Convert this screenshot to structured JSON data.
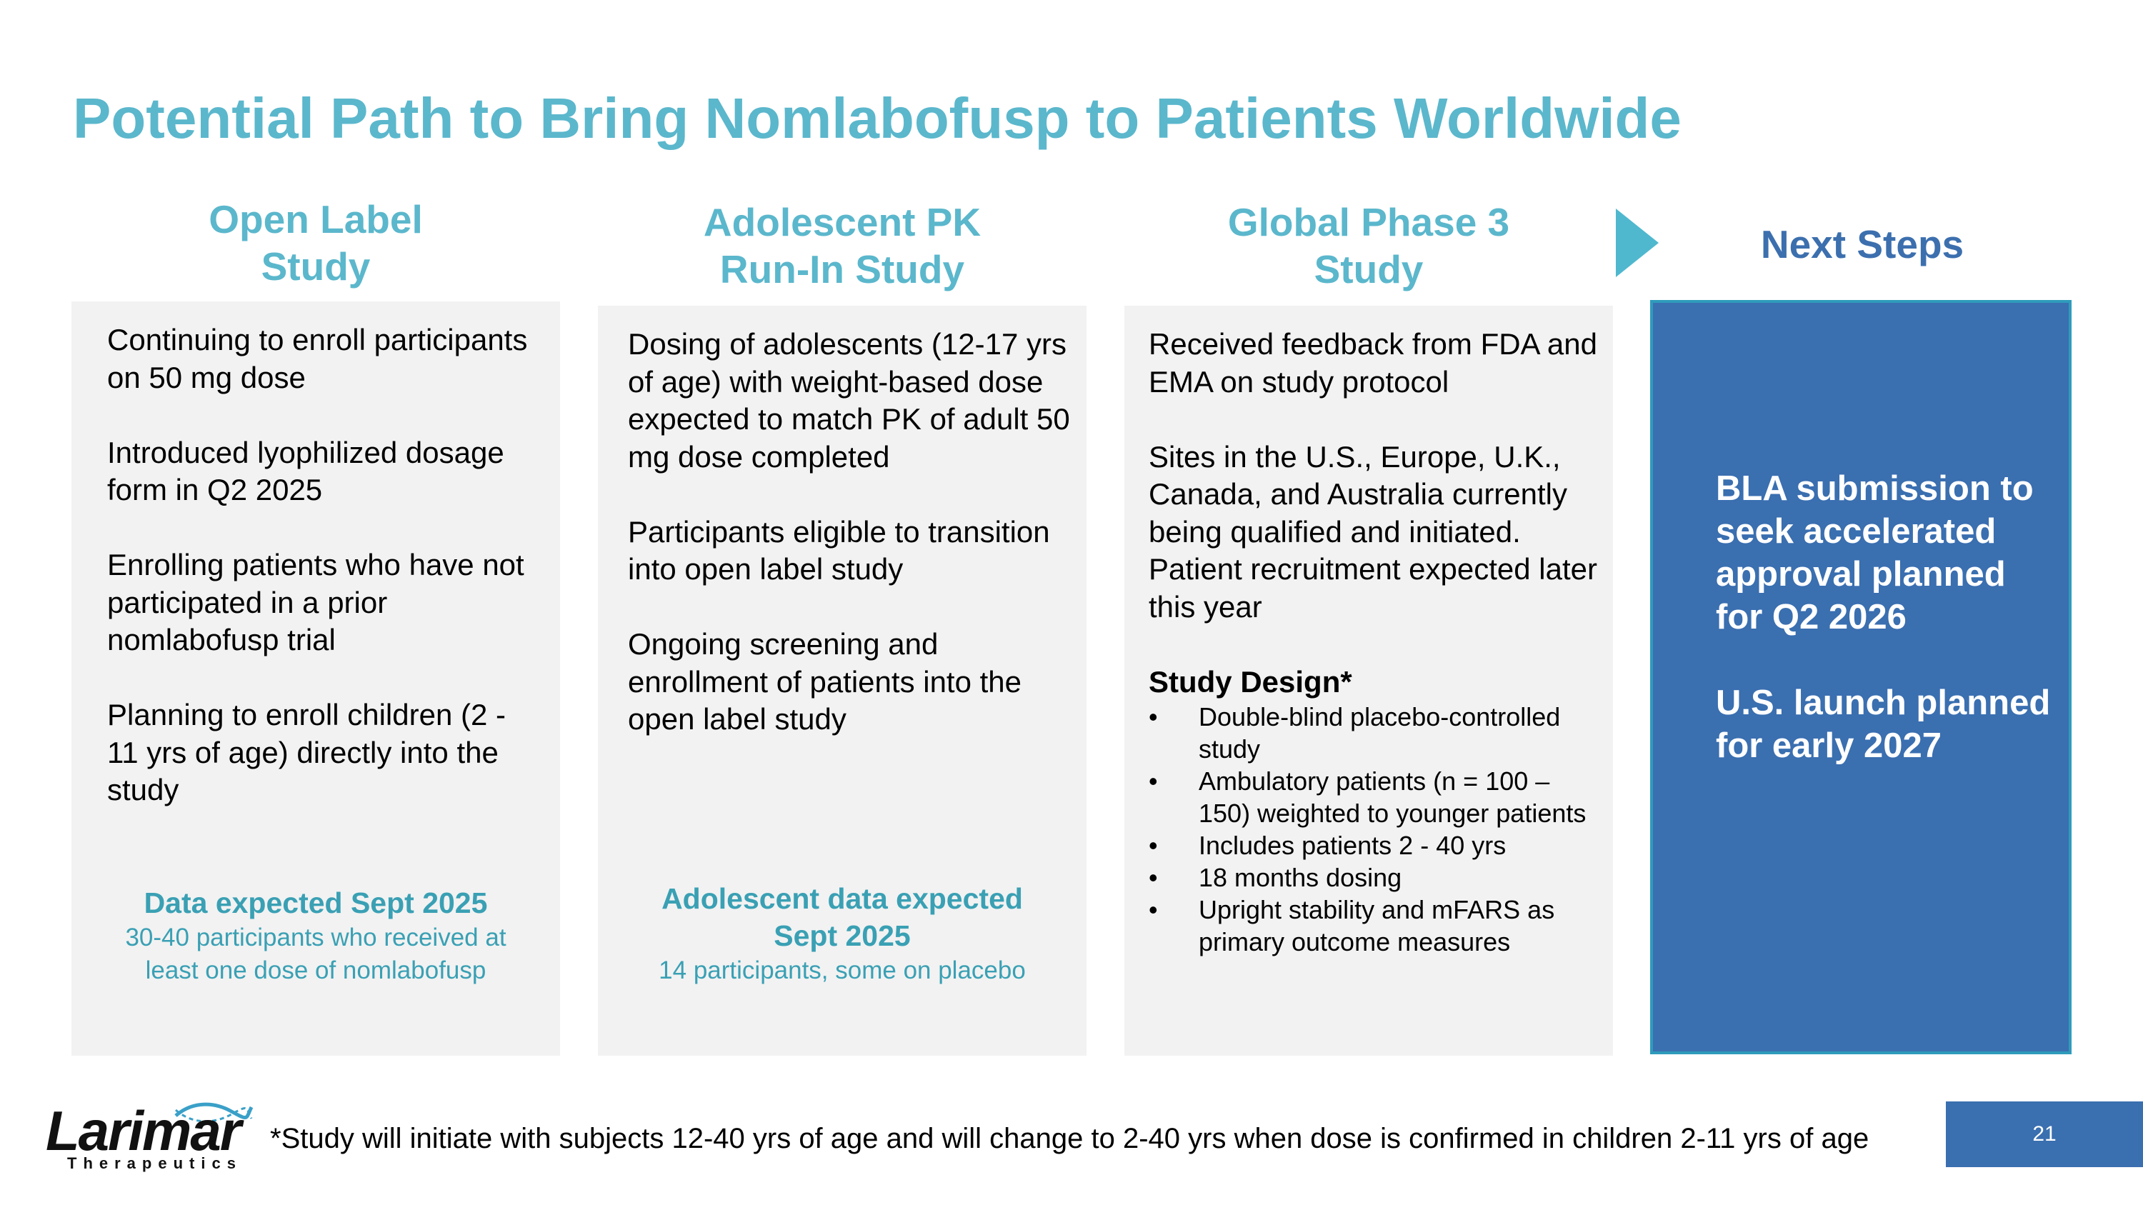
{
  "title": "Potential Path to Bring Nomlabofusp to Patients Worldwide",
  "columns": [
    {
      "header_line1": "Open Label",
      "header_line2": "Study",
      "paragraphs": [
        "Continuing to enroll participants on 50 mg dose",
        "Introduced lyophilized dosage form in Q2 2025",
        "Enrolling patients who have not participated in a prior nomlabofusp trial",
        "Planning to enroll children (2 - 11 yrs of age) directly into the study"
      ],
      "footer_highlight": "Data expected Sept 2025",
      "footer_sub": "30-40 participants who received at least one dose of nomlabofusp"
    },
    {
      "header_line1": "Adolescent PK",
      "header_line2": "Run-In Study",
      "paragraphs": [
        "Dosing of adolescents (12-17 yrs of age) with weight-based dose expected to match PK of adult 50 mg dose completed",
        "Participants eligible to transition into open label study",
        "Ongoing screening and enrollment of patients into the open label study"
      ],
      "footer_highlight": "Adolescent data expected Sept 2025",
      "footer_sub": "14 participants, some on placebo"
    },
    {
      "header_line1": "Global Phase 3",
      "header_line2": "Study",
      "paragraphs": [
        "Received feedback from FDA and EMA on study protocol",
        "Sites in the U.S., Europe, U.K., Canada, and Australia currently being qualified and initiated. Patient recruitment expected later this year"
      ],
      "design_title": "Study Design*",
      "design_items": [
        "Double-blind placebo-controlled study",
        "Ambulatory patients (n = 100 – 150) weighted to younger patients",
        "Includes patients 2 - 40 yrs",
        "18 months dosing",
        "Upright stability and mFARS as primary outcome measures"
      ]
    }
  ],
  "next_steps": {
    "header": "Next Steps",
    "items": [
      "BLA submission to seek accelerated approval planned for Q2 2026",
      "U.S. launch planned for early 2027"
    ]
  },
  "logo": {
    "name": "Larimar",
    "tagline": "Therapeutics"
  },
  "footnote": "*Study will initiate with subjects 12-40 yrs of age and will change to 2-40 yrs when dose is confirmed in children 2-11 yrs of age",
  "page_number": "21",
  "colors": {
    "title": "#5bb7cc",
    "box_bg": "#f2f2f2",
    "next_box_bg": "#3a6fb0",
    "next_header": "#3c6fae",
    "footer_text": "#3aa0b4"
  }
}
